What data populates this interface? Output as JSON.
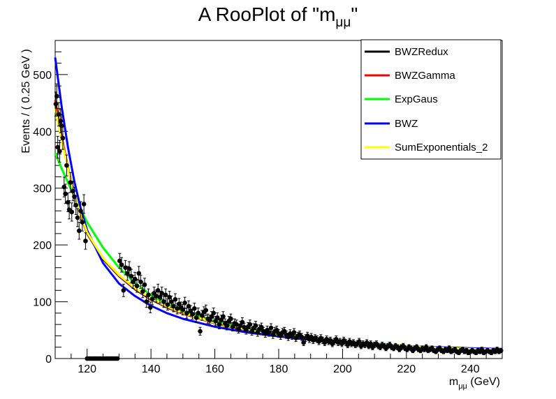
{
  "chart_data": {
    "type": "scatter",
    "title_main": "A RooPlot of \"m",
    "title_sub": "μμ",
    "title_end": "\"",
    "xlabel_main": "m",
    "xlabel_sub": "μμ",
    "xlabel_end": " (GeV)",
    "ylabel": "Events / ( 0.25 GeV )",
    "xlim": [
      110,
      250
    ],
    "ylim": [
      0,
      560
    ],
    "x_ticks": [
      120,
      140,
      160,
      180,
      200,
      220,
      240
    ],
    "y_ticks": [
      0,
      100,
      200,
      300,
      400,
      500
    ],
    "tick_labels_x": [
      "120",
      "140",
      "160",
      "180",
      "200",
      "220",
      "240"
    ],
    "tick_labels_y": [
      "0",
      "100",
      "200",
      "300",
      "400",
      "500"
    ],
    "legend_placement": "top-right",
    "blinded_range": [
      120,
      130
    ],
    "data_points": [
      [
        110.2,
        448
      ],
      [
        110.5,
        462
      ],
      [
        110.8,
        372
      ],
      [
        111.1,
        430
      ],
      [
        111.4,
        365
      ],
      [
        111.7,
        418
      ],
      [
        112.0,
        410
      ],
      [
        112.4,
        388
      ],
      [
        112.8,
        302
      ],
      [
        113.2,
        290
      ],
      [
        113.6,
        340
      ],
      [
        114.0,
        275
      ],
      [
        114.4,
        262
      ],
      [
        114.8,
        310
      ],
      [
        115.2,
        258
      ],
      [
        115.6,
        295
      ],
      [
        116.0,
        285
      ],
      [
        116.5,
        270
      ],
      [
        117.0,
        248
      ],
      [
        117.5,
        225
      ],
      [
        118.0,
        260
      ],
      [
        118.5,
        240
      ],
      [
        119.0,
        272
      ],
      [
        119.5,
        207
      ],
      [
        130.2,
        172
      ],
      [
        130.8,
        165
      ],
      [
        131.4,
        120
      ],
      [
        132.0,
        160
      ],
      [
        132.6,
        150
      ],
      [
        133.2,
        158
      ],
      [
        133.8,
        145
      ],
      [
        134.4,
        135
      ],
      [
        135.0,
        140
      ],
      [
        135.6,
        128
      ],
      [
        136.2,
        150
      ],
      [
        136.8,
        135
      ],
      [
        137.4,
        118
      ],
      [
        138.0,
        130
      ],
      [
        138.6,
        100
      ],
      [
        139.2,
        112
      ],
      [
        139.8,
        90
      ],
      [
        140.4,
        105
      ],
      [
        141.0,
        115
      ],
      [
        141.6,
        110
      ],
      [
        142.2,
        120
      ],
      [
        142.8,
        108
      ],
      [
        143.4,
        115
      ],
      [
        144.0,
        100
      ],
      [
        144.6,
        112
      ],
      [
        145.2,
        95
      ],
      [
        145.8,
        108
      ],
      [
        146.4,
        100
      ],
      [
        147.0,
        92
      ],
      [
        147.6,
        104
      ],
      [
        148.2,
        88
      ],
      [
        148.8,
        96
      ],
      [
        149.4,
        90
      ],
      [
        150.0,
        86
      ],
      [
        150.6,
        98
      ],
      [
        151.2,
        80
      ],
      [
        151.8,
        92
      ],
      [
        152.4,
        84
      ],
      [
        153.0,
        78
      ],
      [
        153.6,
        88
      ],
      [
        154.2,
        72
      ],
      [
        154.8,
        80
      ],
      [
        155.4,
        48
      ],
      [
        156.0,
        76
      ],
      [
        156.6,
        82
      ],
      [
        157.2,
        85
      ],
      [
        157.8,
        70
      ],
      [
        158.4,
        68
      ],
      [
        159.0,
        74
      ],
      [
        159.6,
        80
      ],
      [
        160.2,
        66
      ],
      [
        160.8,
        72
      ],
      [
        161.4,
        60
      ],
      [
        162.0,
        68
      ],
      [
        162.6,
        74
      ],
      [
        163.2,
        62
      ],
      [
        163.8,
        58
      ],
      [
        164.4,
        66
      ],
      [
        165.0,
        70
      ],
      [
        165.6,
        56
      ],
      [
        166.2,
        62
      ],
      [
        166.8,
        60
      ],
      [
        167.4,
        52
      ],
      [
        168.0,
        58
      ],
      [
        168.6,
        64
      ],
      [
        169.2,
        55
      ],
      [
        169.8,
        50
      ],
      [
        170.4,
        56
      ],
      [
        171.0,
        60
      ],
      [
        171.6,
        48
      ],
      [
        172.2,
        54
      ],
      [
        172.8,
        58
      ],
      [
        173.4,
        46
      ],
      [
        174.0,
        52
      ],
      [
        174.6,
        55
      ],
      [
        175.2,
        48
      ],
      [
        175.8,
        44
      ],
      [
        176.4,
        50
      ],
      [
        177.0,
        46
      ],
      [
        177.6,
        54
      ],
      [
        178.2,
        42
      ],
      [
        178.8,
        48
      ],
      [
        179.4,
        50
      ],
      [
        180.0,
        44
      ],
      [
        180.6,
        40
      ],
      [
        181.2,
        46
      ],
      [
        181.8,
        48
      ],
      [
        182.4,
        42
      ],
      [
        183.0,
        38
      ],
      [
        183.6,
        44
      ],
      [
        184.2,
        40
      ],
      [
        184.8,
        46
      ],
      [
        185.4,
        36
      ],
      [
        186.0,
        40
      ],
      [
        186.6,
        42
      ],
      [
        187.2,
        38
      ],
      [
        187.8,
        28
      ],
      [
        188.4,
        36
      ],
      [
        189.0,
        40
      ],
      [
        189.6,
        34
      ],
      [
        190.2,
        38
      ],
      [
        190.8,
        32
      ],
      [
        191.4,
        36
      ],
      [
        192.0,
        34
      ],
      [
        192.6,
        30
      ],
      [
        193.2,
        36
      ],
      [
        193.8,
        32
      ],
      [
        194.4,
        28
      ],
      [
        195.0,
        34
      ],
      [
        195.6,
        30
      ],
      [
        196.2,
        32
      ],
      [
        196.8,
        26
      ],
      [
        197.4,
        30
      ],
      [
        198.0,
        34
      ],
      [
        198.6,
        28
      ],
      [
        199.2,
        30
      ],
      [
        199.8,
        26
      ],
      [
        200.4,
        32
      ],
      [
        201.0,
        28
      ],
      [
        201.6,
        24
      ],
      [
        202.2,
        30
      ],
      [
        202.8,
        26
      ],
      [
        203.4,
        28
      ],
      [
        204.0,
        24
      ],
      [
        204.6,
        26
      ],
      [
        205.2,
        30
      ],
      [
        205.8,
        22
      ],
      [
        206.4,
        26
      ],
      [
        207.0,
        24
      ],
      [
        207.6,
        28
      ],
      [
        208.2,
        22
      ],
      [
        208.8,
        26
      ],
      [
        209.4,
        20
      ],
      [
        210.0,
        24
      ],
      [
        210.6,
        26
      ],
      [
        211.2,
        22
      ],
      [
        211.8,
        20
      ],
      [
        212.4,
        24
      ],
      [
        213.0,
        22
      ],
      [
        213.6,
        18
      ],
      [
        214.2,
        22
      ],
      [
        214.8,
        24
      ],
      [
        215.4,
        20
      ],
      [
        216.0,
        18
      ],
      [
        216.6,
        22
      ],
      [
        217.2,
        20
      ],
      [
        217.8,
        16
      ],
      [
        218.4,
        20
      ],
      [
        219.0,
        22
      ],
      [
        219.6,
        18
      ],
      [
        220.2,
        16
      ],
      [
        220.8,
        20
      ],
      [
        221.4,
        18
      ],
      [
        222.0,
        14
      ],
      [
        222.6,
        18
      ],
      [
        223.2,
        20
      ],
      [
        223.8,
        16
      ],
      [
        224.4,
        14
      ],
      [
        225.0,
        18
      ],
      [
        225.6,
        16
      ],
      [
        226.2,
        20
      ],
      [
        226.8,
        14
      ],
      [
        227.4,
        16
      ],
      [
        228.0,
        18
      ],
      [
        228.6,
        14
      ],
      [
        229.2,
        12
      ],
      [
        229.8,
        16
      ],
      [
        230.4,
        18
      ],
      [
        231.0,
        14
      ],
      [
        231.6,
        12
      ],
      [
        232.2,
        16
      ],
      [
        232.8,
        14
      ],
      [
        233.4,
        18
      ],
      [
        234.0,
        12
      ],
      [
        234.6,
        14
      ],
      [
        235.2,
        16
      ],
      [
        235.8,
        12
      ],
      [
        236.4,
        10
      ],
      [
        237.0,
        14
      ],
      [
        237.6,
        16
      ],
      [
        238.2,
        12
      ],
      [
        238.8,
        14
      ],
      [
        239.4,
        10
      ],
      [
        240.0,
        12
      ],
      [
        240.6,
        14
      ],
      [
        241.2,
        12
      ],
      [
        241.8,
        10
      ],
      [
        242.4,
        14
      ],
      [
        243.0,
        12
      ],
      [
        243.6,
        16
      ],
      [
        244.2,
        10
      ],
      [
        244.8,
        12
      ],
      [
        245.4,
        14
      ],
      [
        246.0,
        12
      ],
      [
        246.6,
        10
      ],
      [
        247.2,
        14
      ],
      [
        247.8,
        12
      ],
      [
        248.4,
        16
      ],
      [
        249.0,
        12
      ],
      [
        249.6,
        14
      ]
    ],
    "series": [
      {
        "name": "BWZRedux",
        "color": "#000000",
        "points": [
          [
            110,
            450
          ],
          [
            112,
            390
          ],
          [
            114,
            335
          ],
          [
            116,
            290
          ],
          [
            118,
            252
          ],
          [
            120,
            220
          ],
          [
            125,
            175
          ],
          [
            130,
            145
          ],
          [
            135,
            122
          ],
          [
            140,
            104
          ],
          [
            145,
            90
          ],
          [
            150,
            79
          ],
          [
            160,
            62
          ],
          [
            170,
            50
          ],
          [
            180,
            41
          ],
          [
            190,
            34
          ],
          [
            200,
            29
          ],
          [
            210,
            25
          ],
          [
            220,
            22
          ],
          [
            230,
            19
          ],
          [
            240,
            17
          ],
          [
            250,
            16
          ]
        ]
      },
      {
        "name": "BWZGamma",
        "color": "#ff0000",
        "points": [
          [
            110,
            455
          ],
          [
            112,
            392
          ],
          [
            114,
            336
          ],
          [
            116,
            290
          ],
          [
            118,
            252
          ],
          [
            120,
            221
          ],
          [
            125,
            176
          ],
          [
            130,
            146
          ],
          [
            135,
            123
          ],
          [
            140,
            105
          ],
          [
            145,
            91
          ],
          [
            150,
            79
          ],
          [
            160,
            62
          ],
          [
            170,
            50
          ],
          [
            180,
            41
          ],
          [
            190,
            34
          ],
          [
            200,
            29
          ],
          [
            210,
            25
          ],
          [
            220,
            22
          ],
          [
            230,
            19
          ],
          [
            240,
            17
          ],
          [
            250,
            16
          ]
        ]
      },
      {
        "name": "ExpGaus",
        "color": "#00ff00",
        "points": [
          [
            110,
            362
          ],
          [
            112,
            335
          ],
          [
            114,
            310
          ],
          [
            116,
            285
          ],
          [
            118,
            262
          ],
          [
            120,
            240
          ],
          [
            125,
            195
          ],
          [
            130,
            160
          ],
          [
            135,
            133
          ],
          [
            140,
            112
          ],
          [
            145,
            96
          ],
          [
            150,
            84
          ],
          [
            160,
            66
          ],
          [
            170,
            53
          ],
          [
            180,
            44
          ],
          [
            190,
            36
          ],
          [
            200,
            30
          ],
          [
            210,
            26
          ],
          [
            220,
            22
          ],
          [
            230,
            19
          ],
          [
            240,
            17
          ],
          [
            250,
            15
          ]
        ]
      },
      {
        "name": "BWZ",
        "color": "#0000ff",
        "points": [
          [
            110,
            530
          ],
          [
            112,
            445
          ],
          [
            114,
            372
          ],
          [
            116,
            312
          ],
          [
            118,
            264
          ],
          [
            120,
            226
          ],
          [
            125,
            168
          ],
          [
            130,
            132
          ],
          [
            135,
            110
          ],
          [
            140,
            93
          ],
          [
            145,
            80
          ],
          [
            150,
            70
          ],
          [
            160,
            56
          ],
          [
            170,
            46
          ],
          [
            180,
            39
          ],
          [
            190,
            33
          ],
          [
            200,
            29
          ],
          [
            210,
            25
          ],
          [
            220,
            22
          ],
          [
            230,
            20
          ],
          [
            240,
            18
          ],
          [
            250,
            17
          ]
        ]
      },
      {
        "name": "SumExponentials_2",
        "color": "#ffff00",
        "points": [
          [
            110,
            440
          ],
          [
            112,
            385
          ],
          [
            114,
            334
          ],
          [
            116,
            290
          ],
          [
            118,
            253
          ],
          [
            120,
            222
          ],
          [
            125,
            177
          ],
          [
            130,
            147
          ],
          [
            135,
            124
          ],
          [
            140,
            106
          ],
          [
            145,
            92
          ],
          [
            150,
            80
          ],
          [
            160,
            63
          ],
          [
            170,
            51
          ],
          [
            180,
            42
          ],
          [
            190,
            35
          ],
          [
            200,
            29
          ],
          [
            210,
            25
          ],
          [
            220,
            22
          ],
          [
            230,
            19
          ],
          [
            240,
            17
          ],
          [
            250,
            16
          ]
        ]
      }
    ]
  }
}
